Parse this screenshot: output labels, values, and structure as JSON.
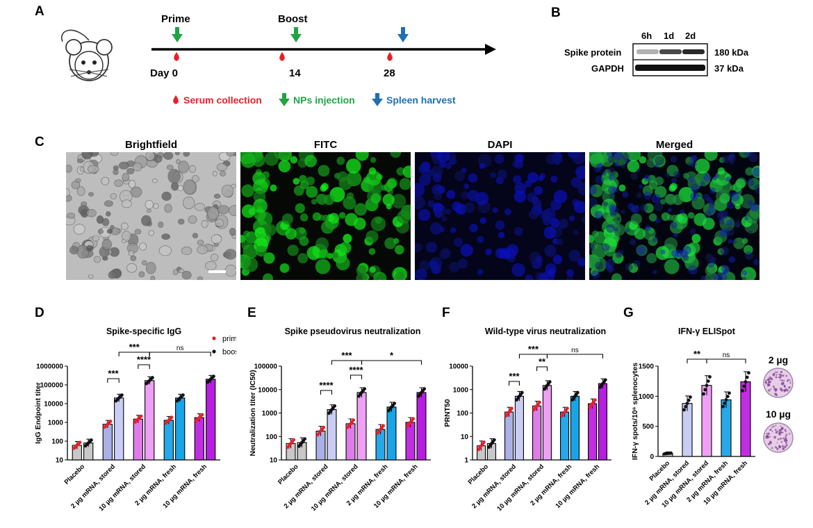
{
  "panels": {
    "A": "A",
    "B": "B",
    "C": "C",
    "D": "D",
    "E": "E",
    "F": "F",
    "G": "G"
  },
  "timeline": {
    "prime": "Prime",
    "boost": "Boost",
    "day0": "Day 0",
    "day14": "14",
    "day28": "28",
    "legend": {
      "serum": "Serum collection",
      "nps": "NPs injection",
      "spleen": "Spleen harvest"
    },
    "colors": {
      "serum": "#e8202a",
      "nps": "#1fa544",
      "spleen": "#1f6fb5"
    }
  },
  "western": {
    "lanes": [
      "6h",
      "1d",
      "2d"
    ],
    "rows": [
      {
        "label": "Spike protein",
        "size": "180 kDa"
      },
      {
        "label": "GAPDH",
        "size": "37 kDa"
      }
    ],
    "spike_intensity": [
      0.25,
      0.75,
      0.9
    ]
  },
  "microscopy": {
    "titles": [
      "Brightfield",
      "FITC",
      "DAPI",
      "Merged"
    ]
  },
  "groups": [
    "Placebo",
    "2 µg mRNA, stored",
    "10 µg mRNA, stored",
    "2 µg mRNA, fresh",
    "10 µg mRNA, fresh"
  ],
  "legend": {
    "prime": "prime",
    "boost": "boost"
  },
  "colors": {
    "placebo": "#c8c8c8",
    "s2_prime": "#aab1e6",
    "s2_boost": "#c9cdf4",
    "s10_prime": "#e07ce8",
    "s10_boost": "#ef9ff5",
    "f2_prime": "#27a8e8",
    "f2_boost": "#18a5e8",
    "f10_prime": "#c12de0",
    "f10_boost": "#b71fe0",
    "prime_dot": "#e8202a",
    "boost_dot": "#111111"
  },
  "chart_data": [
    {
      "id": "D",
      "type": "bar",
      "title": "Spike-specific IgG",
      "ylabel": "IgG Endpoint titer",
      "yscale": "log",
      "ylim": [
        10,
        1000000
      ],
      "yticks": [
        "10",
        "100",
        "1000",
        "10000",
        "100000",
        "1000000"
      ],
      "series": [
        {
          "name": "prime",
          "values": [
            60,
            800,
            1500,
            1300,
            1800
          ]
        },
        {
          "name": "boost",
          "values": [
            80,
            20000,
            170000,
            20000,
            200000
          ]
        }
      ],
      "significance": [
        {
          "label": "***"
        },
        {
          "label": "****"
        },
        {
          "label": "***"
        },
        {
          "label": "ns"
        }
      ]
    },
    {
      "id": "E",
      "type": "bar",
      "title": "Spike pseudovirus neutralization",
      "ylabel": "Neutralization titer (IC50)",
      "yscale": "log",
      "ylim": [
        10,
        100000
      ],
      "yticks": [
        "10",
        "100",
        "1000",
        "10000",
        "100000"
      ],
      "series": [
        {
          "name": "prime",
          "values": [
            50,
            170,
            350,
            200,
            400
          ]
        },
        {
          "name": "boost",
          "values": [
            55,
            1400,
            7500,
            1800,
            7500
          ]
        }
      ],
      "significance": [
        {
          "label": "****"
        },
        {
          "label": "****"
        },
        {
          "label": "***"
        },
        {
          "label": "*"
        }
      ]
    },
    {
      "id": "F",
      "type": "bar",
      "title": "Wild-type virus neutralization",
      "ylabel": "PRNT50",
      "yscale": "log",
      "ylim": [
        1,
        10000
      ],
      "yticks": [
        "1",
        "10",
        "100",
        "1000",
        "10000"
      ],
      "series": [
        {
          "name": "prime",
          "values": [
            4,
            110,
            200,
            110,
            250
          ]
        },
        {
          "name": "boost",
          "values": [
            5,
            520,
            1500,
            520,
            1800
          ]
        }
      ],
      "significance": [
        {
          "label": "***"
        },
        {
          "label": "**"
        },
        {
          "label": "***"
        },
        {
          "label": "ns"
        }
      ]
    },
    {
      "id": "G",
      "type": "bar",
      "title": "IFN-γ ELISpot",
      "ylabel": "IFN-γ spots/10⁶ splenocytes",
      "yscale": "linear",
      "ylim": [
        0,
        1500
      ],
      "yticks": [
        "0",
        "500",
        "1000",
        "1500"
      ],
      "series": [
        {
          "name": "",
          "values": [
            50,
            880,
            1180,
            940,
            1240
          ]
        }
      ],
      "significance": [
        {
          "label": "**"
        },
        {
          "label": "ns"
        }
      ],
      "wells": [
        {
          "label": "2 µg"
        },
        {
          "label": "10 µg"
        }
      ]
    }
  ]
}
